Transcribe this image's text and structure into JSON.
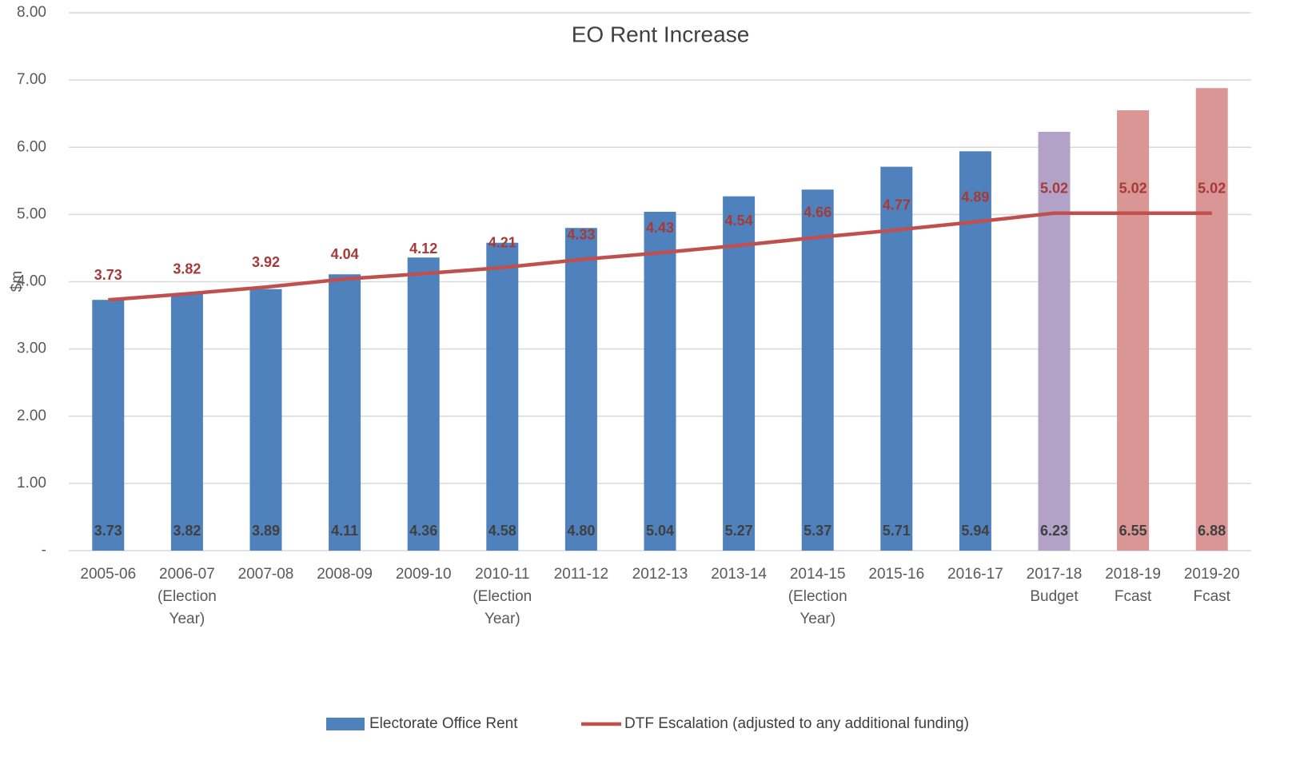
{
  "chart_data": {
    "type": "bar+line",
    "title": "EO Rent Increase",
    "y_label": "$m",
    "categories": [
      "2005-06",
      "2006-07 (Election Year)",
      "2007-08",
      "2008-09",
      "2009-10",
      "2010-11 (Election Year)",
      "2011-12",
      "2012-13",
      "2013-14",
      "2014-15 (Election Year)",
      "2015-16",
      "2016-17",
      "2017-18 Budget",
      "2018-19 Fcast",
      "2019-20 Fcast"
    ],
    "series": [
      {
        "name": "Electorate Office Rent",
        "type": "bar",
        "color": "#4f81bd",
        "colors": [
          "#4f81bd",
          "#4f81bd",
          "#4f81bd",
          "#4f81bd",
          "#4f81bd",
          "#4f81bd",
          "#4f81bd",
          "#4f81bd",
          "#4f81bd",
          "#4f81bd",
          "#4f81bd",
          "#4f81bd",
          "#b3a2c7",
          "#d99694",
          "#d99694"
        ],
        "values": [
          3.73,
          3.82,
          3.89,
          4.11,
          4.36,
          4.58,
          4.8,
          5.04,
          5.27,
          5.37,
          5.71,
          5.94,
          6.23,
          6.55,
          6.88
        ],
        "value_labels": [
          "3.73",
          "3.82",
          "3.89",
          "4.11",
          "4.36",
          "4.58",
          "4.80",
          "5.04",
          "5.27",
          "5.37",
          "5.71",
          "5.94",
          "6.23",
          "6.55",
          "6.88"
        ]
      },
      {
        "name": "DTF Escalation (adjusted to any additional funding)",
        "type": "line",
        "color": "#c0504d",
        "values": [
          3.73,
          3.82,
          3.92,
          4.04,
          4.12,
          4.21,
          4.33,
          4.43,
          4.54,
          4.66,
          4.77,
          4.89,
          5.02,
          5.02,
          5.02
        ]
      }
    ],
    "ylim": [
      0,
      8
    ],
    "yticks": [
      {
        "value": 0,
        "label": "-"
      },
      {
        "value": 1,
        "label": "1.00"
      },
      {
        "value": 2,
        "label": "2.00"
      },
      {
        "value": 3,
        "label": "3.00"
      },
      {
        "value": 4,
        "label": "4.00"
      },
      {
        "value": 5,
        "label": "5.00"
      },
      {
        "value": 6,
        "label": "6.00"
      },
      {
        "value": 7,
        "label": "7.00"
      },
      {
        "value": 8,
        "label": "8.00"
      }
    ],
    "grid": true,
    "legend": "bottom"
  }
}
